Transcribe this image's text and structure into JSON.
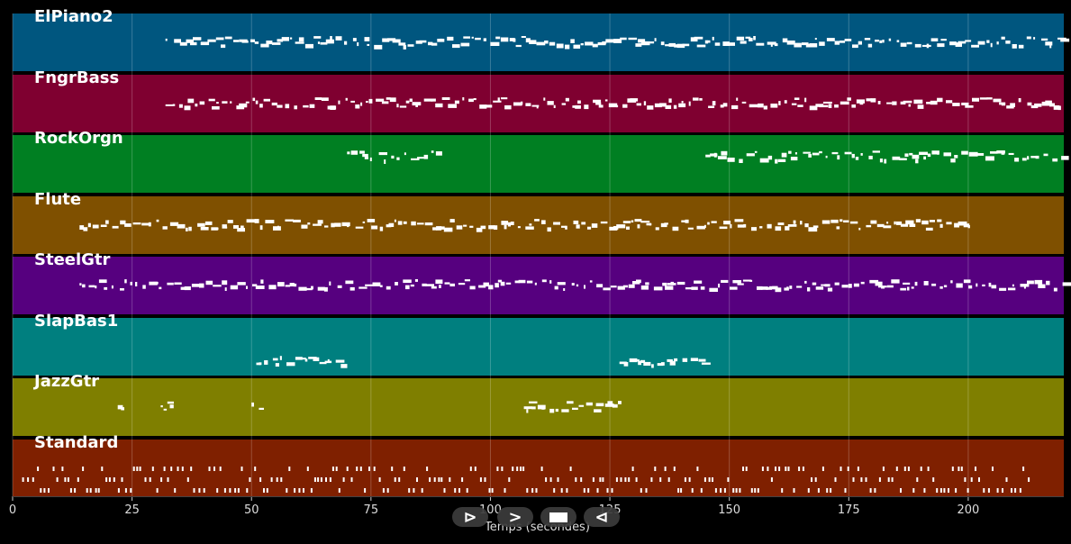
{
  "tracks": [
    {
      "name": "ElPiano2",
      "color": "#00567f"
    },
    {
      "name": "FngrBass",
      "color": "#7f0030"
    },
    {
      "name": "RockOrgn",
      "color": "#007f22"
    },
    {
      "name": "Flute",
      "color": "#7f5000"
    },
    {
      "name": "SteelGtr",
      "color": "#56007f"
    },
    {
      "name": "SlapBas1",
      "color": "#007f7f"
    },
    {
      "name": "JazzGtr",
      "color": "#7f7f00"
    },
    {
      "name": "Standard",
      "color": "#7f2000"
    }
  ],
  "axis": {
    "xlabel": "Temps (secondes)",
    "xlim": [
      0,
      220
    ],
    "ticks": [
      {
        "value": 0,
        "label": "0"
      },
      {
        "value": 25,
        "label": "25"
      },
      {
        "value": 50,
        "label": "50"
      },
      {
        "value": 75,
        "label": "75"
      },
      {
        "value": 100,
        "label": "100"
      },
      {
        "value": 125,
        "label": "125"
      },
      {
        "value": 150,
        "label": "150"
      },
      {
        "value": 175,
        "label": "175"
      },
      {
        "value": 200,
        "label": "200"
      }
    ],
    "grid": true
  },
  "controls": [
    {
      "name": "play-button",
      "glyph": "⊳"
    },
    {
      "name": "forward-button",
      "glyph": ">"
    },
    {
      "name": "stop-button",
      "glyph": ""
    },
    {
      "name": "rewind-button",
      "glyph": "⊲"
    }
  ],
  "chart_data": {
    "type": "scatter",
    "xlabel": "Temps (secondes)",
    "ylabel": "",
    "xlim": [
      0,
      220
    ],
    "legend": "none",
    "series": [
      {
        "name": "ElPiano2",
        "segments": [
          [
            32,
            220
          ]
        ]
      },
      {
        "name": "FngrBass",
        "segments": [
          [
            32,
            220
          ]
        ]
      },
      {
        "name": "RockOrgn",
        "segments": [
          [
            70,
            90
          ],
          [
            145,
            220
          ]
        ]
      },
      {
        "name": "Flute",
        "segments": [
          [
            14,
            200
          ]
        ]
      },
      {
        "name": "SteelGtr",
        "segments": [
          [
            14,
            220
          ]
        ]
      },
      {
        "name": "SlapBas1",
        "segments": [
          [
            51,
            70
          ],
          [
            127,
            145
          ]
        ]
      },
      {
        "name": "JazzGtr",
        "segments": [
          [
            22,
            23
          ],
          [
            31,
            33
          ],
          [
            50,
            52
          ],
          [
            107,
            127
          ]
        ]
      },
      {
        "name": "Standard",
        "segments": [
          [
            2,
            213
          ]
        ]
      }
    ]
  }
}
